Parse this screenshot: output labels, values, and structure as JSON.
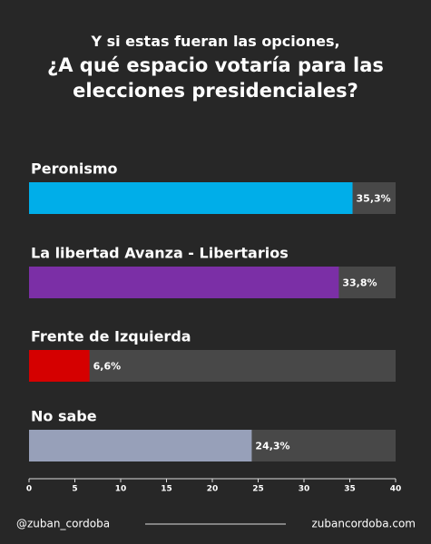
{
  "chart_data": {
    "type": "hbar",
    "subtitle": "Y si estas fueran las opciones,",
    "title": "¿A qué espacio votaría para las elecciones presidenciales?",
    "categories": [
      "Peronismo",
      "La libertad Avanza - Libertarios",
      "Frente de Izquierda",
      "No sabe"
    ],
    "values": [
      35.3,
      33.8,
      6.6,
      24.3
    ],
    "value_labels": [
      "35,3%",
      "33,8%",
      "6,6%",
      "24,3%"
    ],
    "colors": [
      "#00aee9",
      "#7b2fa6",
      "#d50000",
      "#97a0b9"
    ],
    "xlim": [
      0,
      40
    ],
    "xticks": [
      0,
      5,
      10,
      15,
      20,
      25,
      30,
      35,
      40
    ]
  },
  "footer": {
    "left": "@zuban_cordoba",
    "right": "zubancordoba.com"
  }
}
